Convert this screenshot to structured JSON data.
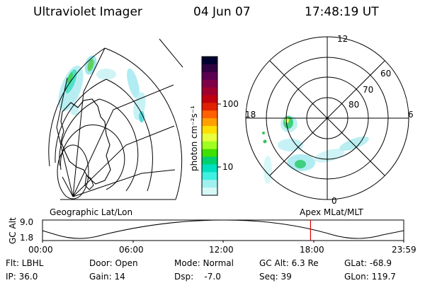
{
  "header": {
    "title": "Ultraviolet Imager",
    "date": "04 Jun 07",
    "time": "17:48:19 UT"
  },
  "colorbar": {
    "unit": "photon cm⁻²s⁻¹",
    "ticks": [
      "100",
      "10"
    ],
    "colors": [
      "#000030",
      "#300040",
      "#5a0050",
      "#800048",
      "#a00030",
      "#c00010",
      "#e02000",
      "#ff6000",
      "#ffa000",
      "#ffe000",
      "#e8ff40",
      "#a0ff20",
      "#40e000",
      "#00d070",
      "#00e0c0",
      "#40f0e0",
      "#a0f0f0",
      "#d8f8f8"
    ]
  },
  "left_panel": {
    "caption": "Geographic Lat/Lon"
  },
  "right_panel": {
    "caption": "Apex MLat/MLT",
    "mlt_labels": {
      "top": "12",
      "left": "18",
      "right": "6",
      "bottom": "0"
    },
    "lat_labels": [
      "60",
      "70",
      "80"
    ]
  },
  "altitude_plot": {
    "ylabel": "GC Alt",
    "yticks": [
      "9.0",
      "1.8"
    ],
    "xticks": [
      "00:00",
      "06:00",
      "12:00",
      "18:00",
      "23:59"
    ],
    "current_time_fraction": 0.7419,
    "marker_color": "#e00000"
  },
  "info": {
    "flt": "Flt: LBHL",
    "ip": "IP: 36.0",
    "door": "Door: Open",
    "gain": "Gain: 14",
    "mode": "Mode: Normal",
    "dsp": "Dsp:    -7.0",
    "gcalt": "GC Alt: 6.3 Re",
    "seq": "Seq: 39",
    "glat": "GLat: -68.9",
    "glon": "GLon: 119.7"
  }
}
